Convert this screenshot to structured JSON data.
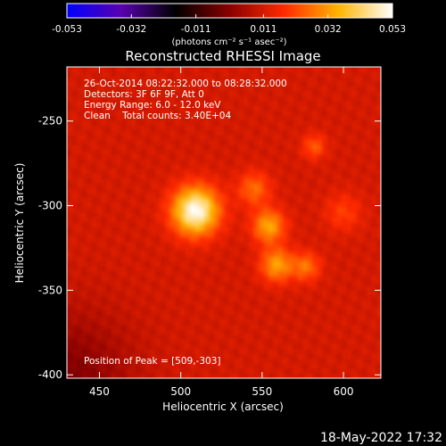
{
  "chart_data": {
    "type": "heatmap",
    "title": "Reconstructed RHESSI Image",
    "xlabel": "Heliocentric X (arcsec)",
    "ylabel": "Heliocentric Y (arcsec)",
    "xlim": [
      430,
      623
    ],
    "ylim": [
      -402,
      -218
    ],
    "x_ticks": [
      450,
      500,
      550,
      600
    ],
    "y_ticks": [
      -250,
      -300,
      -350,
      -400
    ],
    "colorbar": {
      "min": -0.053,
      "max": 0.053,
      "ticks": [
        "-0.053",
        "-0.032",
        "-0.011",
        "0.011",
        "0.032",
        "0.053"
      ],
      "tick_values": [
        -0.053,
        -0.032,
        -0.011,
        0.011,
        0.032,
        0.053
      ],
      "unit_label": "(photons cm⁻² s⁻¹ asec⁻²)",
      "colors": [
        "#0000ff",
        "#5a00b0",
        "#000000",
        "#8a0000",
        "#ff2a00",
        "#ffb400",
        "#ffffff"
      ]
    },
    "annotations": [
      "26-Oct-2014 08:22:32.000 to 08:28:32.000",
      "Detectors: 3F 6F 9F, Att 0",
      "Energy Range: 6.0 - 12.0 keV",
      "Clean    Total counts: 3.40E+04"
    ],
    "peak_label": "Position of Peak = [509,-303]",
    "background_value": 0.011,
    "sources": [
      {
        "x": 509,
        "y": -303,
        "peak": 0.053,
        "sigma": 10
      },
      {
        "x": 554,
        "y": -312,
        "peak": 0.034,
        "sigma": 7
      },
      {
        "x": 559,
        "y": -335,
        "peak": 0.033,
        "sigma": 7
      },
      {
        "x": 577,
        "y": -336,
        "peak": 0.027,
        "sigma": 6
      },
      {
        "x": 545,
        "y": -290,
        "peak": 0.026,
        "sigma": 7
      },
      {
        "x": 582,
        "y": -265,
        "peak": 0.024,
        "sigma": 5
      },
      {
        "x": 600,
        "y": -304,
        "peak": 0.02,
        "sigma": 8
      }
    ]
  },
  "footer": {
    "timestamp": "18-May-2022 17:32"
  }
}
